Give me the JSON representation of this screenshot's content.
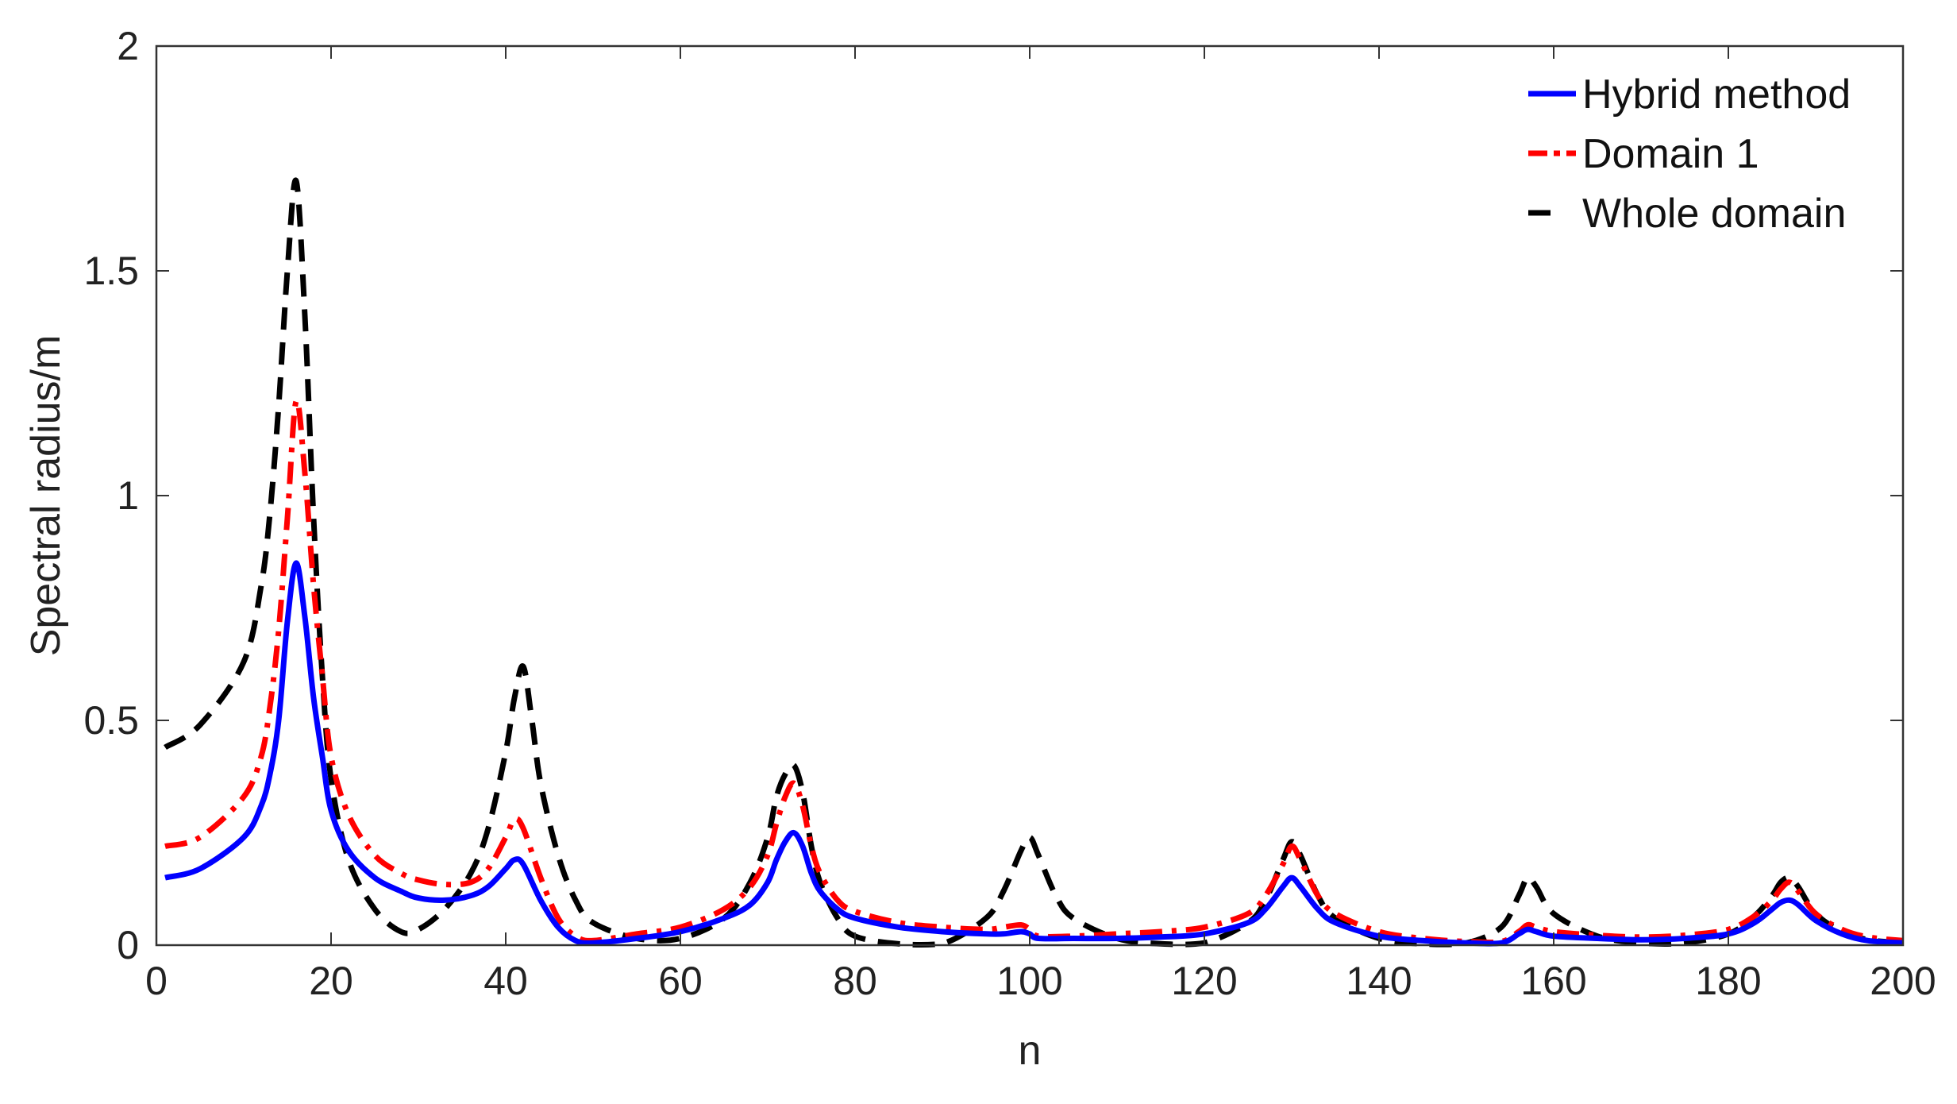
{
  "chart_data": {
    "type": "line",
    "xlabel": "n",
    "ylabel": "Spectral radius/m",
    "xlim": [
      0,
      200
    ],
    "ylim": [
      0,
      2
    ],
    "xticks": [
      0,
      20,
      40,
      60,
      80,
      100,
      120,
      140,
      160,
      180,
      200
    ],
    "yticks": [
      0,
      0.5,
      1,
      1.5,
      2
    ],
    "ytick_labels": [
      "0",
      "0.5",
      "1",
      "1.5",
      "2"
    ],
    "grid": false,
    "legend_position": "top-right",
    "series": [
      {
        "name": "Hybrid method",
        "color": "#0000ff",
        "style": "solid",
        "x": [
          1,
          5,
          10,
          12,
          13,
          14,
          15,
          16,
          17,
          18,
          19,
          20,
          22,
          25,
          28,
          30,
          33,
          36,
          38,
          40,
          41,
          42,
          44,
          46,
          48,
          50,
          55,
          60,
          65,
          68,
          70,
          71,
          72,
          73,
          74,
          75,
          76,
          78,
          80,
          85,
          90,
          95,
          97,
          99,
          100,
          101,
          105,
          110,
          115,
          120,
          125,
          127,
          129,
          130,
          131,
          133,
          135,
          140,
          145,
          150,
          154,
          156,
          157,
          158,
          160,
          165,
          170,
          175,
          180,
          183,
          185,
          186,
          187,
          188,
          190,
          193,
          196,
          200
        ],
        "values": [
          0.15,
          0.17,
          0.24,
          0.31,
          0.38,
          0.5,
          0.72,
          0.85,
          0.73,
          0.55,
          0.42,
          0.3,
          0.21,
          0.15,
          0.12,
          0.105,
          0.1,
          0.11,
          0.13,
          0.17,
          0.19,
          0.18,
          0.1,
          0.04,
          0.01,
          0.005,
          0.015,
          0.03,
          0.06,
          0.09,
          0.14,
          0.19,
          0.23,
          0.25,
          0.22,
          0.16,
          0.12,
          0.08,
          0.06,
          0.04,
          0.03,
          0.025,
          0.025,
          0.03,
          0.025,
          0.015,
          0.015,
          0.015,
          0.018,
          0.025,
          0.05,
          0.08,
          0.13,
          0.15,
          0.13,
          0.08,
          0.05,
          0.02,
          0.01,
          0.005,
          0.005,
          0.025,
          0.035,
          0.03,
          0.02,
          0.015,
          0.012,
          0.015,
          0.025,
          0.05,
          0.08,
          0.095,
          0.1,
          0.09,
          0.055,
          0.025,
          0.01,
          0.005
        ]
      },
      {
        "name": "Domain 1",
        "color": "#ff0000",
        "style": "dashdot",
        "x": [
          1,
          5,
          10,
          12,
          13,
          14,
          15,
          16,
          17,
          18,
          19,
          20,
          22,
          25,
          28,
          30,
          33,
          36,
          38,
          40,
          41,
          42,
          44,
          46,
          48,
          50,
          55,
          60,
          65,
          68,
          70,
          71,
          72,
          73,
          74,
          75,
          76,
          78,
          80,
          85,
          90,
          95,
          97,
          99,
          100,
          101,
          105,
          110,
          115,
          120,
          125,
          127,
          129,
          130,
          131,
          133,
          135,
          140,
          145,
          150,
          154,
          156,
          157,
          158,
          160,
          165,
          170,
          175,
          180,
          183,
          185,
          186,
          187,
          188,
          190,
          193,
          196,
          200
        ],
        "values": [
          0.22,
          0.24,
          0.33,
          0.42,
          0.53,
          0.7,
          0.95,
          1.21,
          1.05,
          0.8,
          0.6,
          0.42,
          0.29,
          0.2,
          0.16,
          0.145,
          0.135,
          0.14,
          0.17,
          0.24,
          0.28,
          0.26,
          0.15,
          0.06,
          0.02,
          0.01,
          0.025,
          0.04,
          0.08,
          0.13,
          0.2,
          0.27,
          0.33,
          0.36,
          0.31,
          0.22,
          0.16,
          0.1,
          0.075,
          0.05,
          0.04,
          0.035,
          0.04,
          0.045,
          0.035,
          0.02,
          0.02,
          0.025,
          0.03,
          0.04,
          0.07,
          0.11,
          0.18,
          0.22,
          0.19,
          0.11,
          0.07,
          0.03,
          0.015,
          0.008,
          0.008,
          0.03,
          0.045,
          0.04,
          0.03,
          0.022,
          0.018,
          0.022,
          0.035,
          0.065,
          0.1,
          0.125,
          0.14,
          0.12,
          0.07,
          0.035,
          0.018,
          0.01
        ]
      },
      {
        "name": "Whole domain",
        "color": "#000000",
        "style": "dashed",
        "x": [
          1,
          5,
          10,
          12,
          13,
          14,
          15,
          16,
          17,
          18,
          19,
          20,
          22,
          25,
          28,
          30,
          33,
          36,
          38,
          40,
          41,
          42,
          43,
          44,
          46,
          48,
          50,
          55,
          60,
          65,
          68,
          70,
          71,
          72,
          73,
          74,
          75,
          76,
          78,
          80,
          85,
          90,
          95,
          97,
          99,
          100,
          101,
          103,
          105,
          110,
          115,
          120,
          125,
          127,
          129,
          130,
          131,
          133,
          135,
          140,
          145,
          150,
          154,
          156,
          157,
          158,
          160,
          165,
          170,
          175,
          180,
          183,
          185,
          186,
          187,
          188,
          190,
          193,
          196,
          200
        ],
        "values": [
          0.44,
          0.49,
          0.63,
          0.8,
          0.96,
          1.2,
          1.5,
          1.7,
          1.4,
          0.95,
          0.6,
          0.37,
          0.19,
          0.08,
          0.03,
          0.035,
          0.08,
          0.16,
          0.26,
          0.43,
          0.55,
          0.62,
          0.5,
          0.36,
          0.2,
          0.1,
          0.05,
          0.015,
          0.015,
          0.06,
          0.14,
          0.24,
          0.33,
          0.38,
          0.4,
          0.34,
          0.22,
          0.14,
          0.06,
          0.02,
          0.003,
          0.003,
          0.06,
          0.12,
          0.21,
          0.24,
          0.2,
          0.11,
          0.06,
          0.015,
          0.003,
          0.005,
          0.05,
          0.1,
          0.19,
          0.23,
          0.2,
          0.11,
          0.06,
          0.015,
          0.003,
          0.005,
          0.04,
          0.11,
          0.15,
          0.13,
          0.07,
          0.02,
          0.005,
          0.005,
          0.025,
          0.065,
          0.11,
          0.14,
          0.15,
          0.13,
          0.07,
          0.03,
          0.012,
          0.005
        ]
      }
    ]
  }
}
